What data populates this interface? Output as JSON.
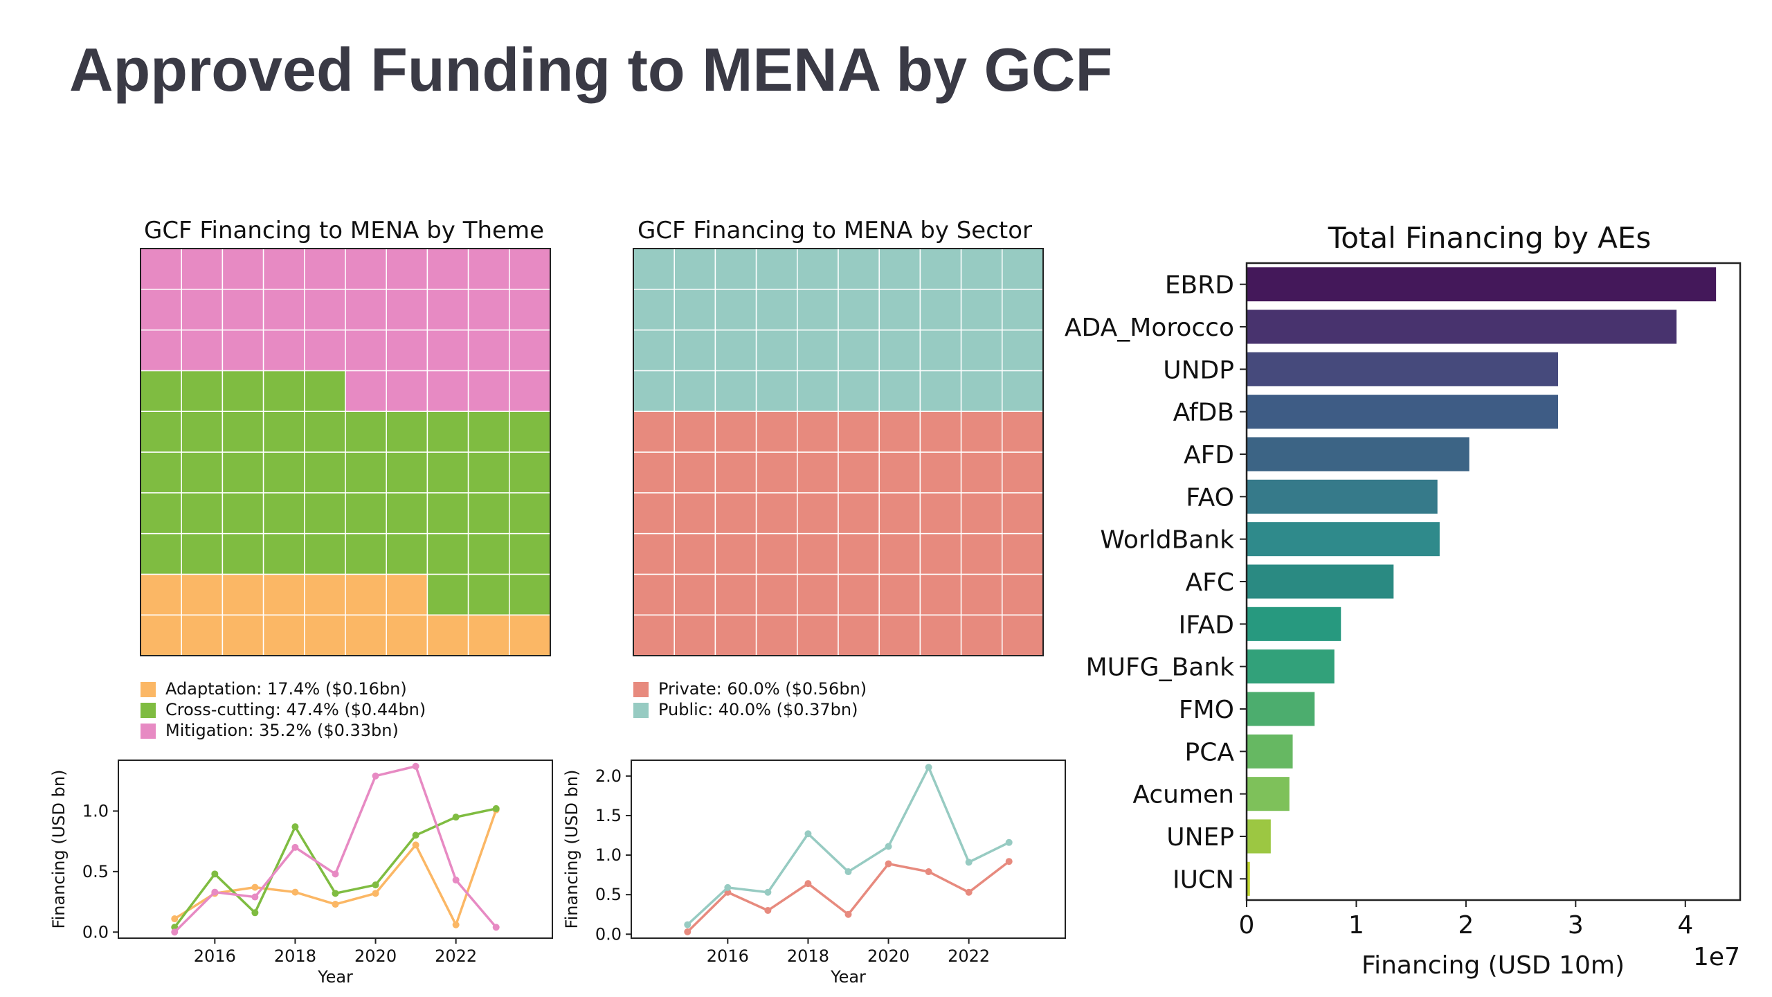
{
  "page": {
    "title": "Approved Funding to MENA by GCF"
  },
  "chart_data": [
    {
      "type": "waffle",
      "title": "GCF Financing to MENA by Theme",
      "rows": 10,
      "cols": 10,
      "cells_per_category": [
        17,
        48,
        35
      ],
      "categories": [
        {
          "name": "Adaptation",
          "label": "Adaptation: 17.4% ($0.16bn)",
          "color": "#fbb765"
        },
        {
          "name": "Cross-cutting",
          "label": "Cross-cutting: 47.4% ($0.44bn)",
          "color": "#7fbc41"
        },
        {
          "name": "Mitigation",
          "label": "Mitigation: 35.2% ($0.33bn)",
          "color": "#e78ac3"
        }
      ]
    },
    {
      "type": "waffle",
      "title": "GCF Financing to MENA by Sector",
      "rows": 10,
      "cols": 10,
      "cells_per_category": [
        60,
        40
      ],
      "categories": [
        {
          "name": "Private",
          "label": "Private: 60.0% ($0.56bn)",
          "color": "#e78a7e"
        },
        {
          "name": "Public",
          "label": "Public: 40.0% ($0.37bn)",
          "color": "#97cbc2"
        }
      ]
    },
    {
      "type": "line",
      "xlabel": "Year",
      "ylabel": "Financing (USD bn)",
      "x": [
        2015,
        2016,
        2017,
        2018,
        2019,
        2020,
        2021,
        2022,
        2023
      ],
      "xlim": [
        2013.6,
        2024.4
      ],
      "ylim": [
        -0.05,
        1.42
      ],
      "xticks": [
        "2016",
        "2018",
        "2020",
        "2022"
      ],
      "yticks": [
        "0.0",
        "0.5",
        "1.0"
      ],
      "series": [
        {
          "color": "#fbb765",
          "values": [
            0.11,
            0.32,
            0.37,
            0.33,
            0.23,
            0.32,
            0.72,
            0.06,
            1.01
          ]
        },
        {
          "color": "#7fbc41",
          "values": [
            0.04,
            0.48,
            0.16,
            0.87,
            0.32,
            0.39,
            0.8,
            0.95,
            1.02
          ]
        },
        {
          "color": "#e78ac3",
          "values": [
            0.0,
            0.33,
            0.29,
            0.7,
            0.48,
            1.29,
            1.37,
            0.43,
            0.04
          ]
        }
      ]
    },
    {
      "type": "line",
      "xlabel": "Year",
      "ylabel": "Financing (USD bn)",
      "x": [
        2015,
        2016,
        2017,
        2018,
        2019,
        2020,
        2021,
        2022,
        2023
      ],
      "xlim": [
        2013.6,
        2024.4
      ],
      "ylim": [
        -0.05,
        2.2
      ],
      "xticks": [
        "2016",
        "2018",
        "2020",
        "2022"
      ],
      "yticks": [
        "0.0",
        "0.5",
        "1.0",
        "1.5",
        "2.0"
      ],
      "series": [
        {
          "color": "#e78a7e",
          "values": [
            0.03,
            0.53,
            0.3,
            0.64,
            0.25,
            0.89,
            0.79,
            0.53,
            0.92
          ]
        },
        {
          "color": "#97cbc2",
          "values": [
            0.12,
            0.59,
            0.53,
            1.27,
            0.79,
            1.11,
            2.11,
            0.91,
            1.16
          ]
        }
      ]
    },
    {
      "type": "bar",
      "orientation": "horizontal",
      "title": "Total Financing by AEs",
      "xlabel": "Financing (USD 10m)",
      "xlim": [
        0,
        4.5
      ],
      "xticks": [
        "0",
        "1",
        "2",
        "3",
        "4"
      ],
      "offset_text": "1e7",
      "categories": [
        "EBRD",
        "ADA_Morocco",
        "UNDP",
        "AfDB",
        "AFD",
        "FAO",
        "WorldBank",
        "AFC",
        "IFAD",
        "MUFG_Bank",
        "FMO",
        "PCA",
        "Acumen",
        "UNEP",
        "IUCN"
      ],
      "values": [
        4.28,
        3.92,
        2.84,
        2.84,
        2.03,
        1.74,
        1.76,
        1.34,
        0.86,
        0.8,
        0.62,
        0.42,
        0.39,
        0.22,
        0.03
      ],
      "colors": [
        "#44185a",
        "#48336e",
        "#464a7c",
        "#3e5c85",
        "#3c6485",
        "#367a8a",
        "#2f8a8b",
        "#2a8a82",
        "#27997f",
        "#32a17a",
        "#4cad6e",
        "#66b862",
        "#7ec15a",
        "#9cc742",
        "#bdd42a"
      ]
    }
  ]
}
